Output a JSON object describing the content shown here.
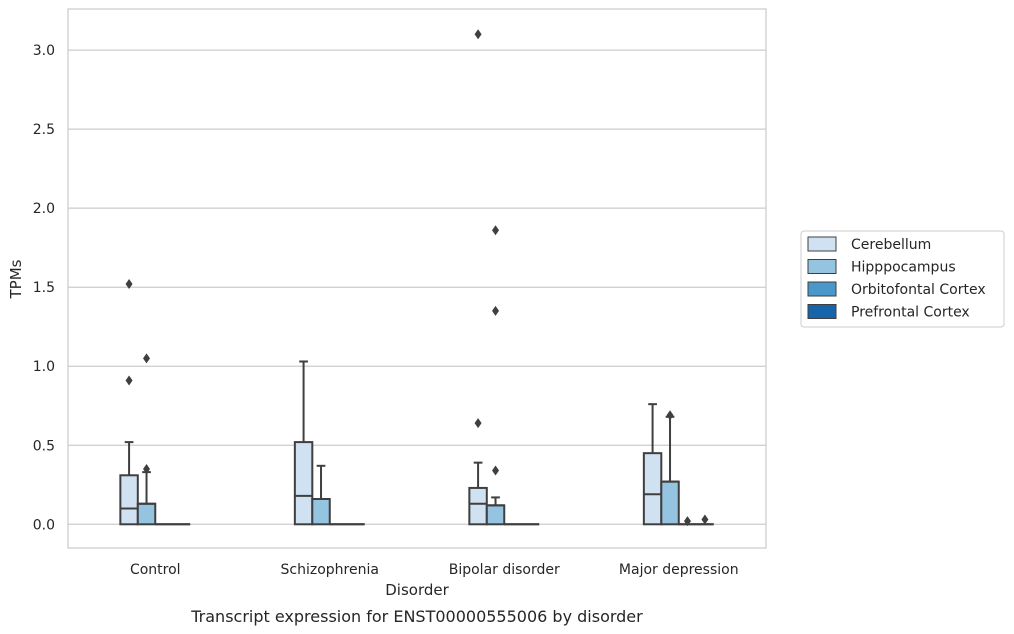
{
  "chart_data": {
    "type": "box",
    "title": "",
    "caption": "Transcript expression for ENST00000555006 by disorder",
    "xlabel": "Disorder",
    "ylabel": "TPMs",
    "ylim": [
      -0.15,
      3.26
    ],
    "yticks": [
      0.0,
      0.5,
      1.0,
      1.5,
      2.0,
      2.5,
      3.0
    ],
    "ytick_labels": [
      "0.0",
      "0.5",
      "1.0",
      "1.5",
      "2.0",
      "2.5",
      "3.0"
    ],
    "categories": [
      "Control",
      "Schizophrenia",
      "Bipolar disorder",
      "Major depression"
    ],
    "grid": "horizontal",
    "legend_position": "right",
    "series": [
      {
        "name": "Cerebellum",
        "color": "#d0e1f2",
        "boxes": [
          {
            "q1": 0.0,
            "median": 0.1,
            "q3": 0.31,
            "whisker_low": 0.0,
            "whisker_high": 0.52,
            "outliers": [
              0.91,
              1.52
            ]
          },
          {
            "q1": 0.0,
            "median": 0.18,
            "q3": 0.52,
            "whisker_low": 0.0,
            "whisker_high": 1.03,
            "outliers": []
          },
          {
            "q1": 0.0,
            "median": 0.13,
            "q3": 0.23,
            "whisker_low": 0.0,
            "whisker_high": 0.39,
            "outliers": [
              0.64,
              3.1
            ]
          },
          {
            "q1": 0.0,
            "median": 0.19,
            "q3": 0.45,
            "whisker_low": 0.0,
            "whisker_high": 0.76,
            "outliers": []
          }
        ]
      },
      {
        "name": "Hipppocampus",
        "color": "#94c4df",
        "boxes": [
          {
            "q1": 0.0,
            "median": 0.13,
            "q3": 0.13,
            "whisker_low": 0.0,
            "whisker_high": 0.33,
            "outliers": [
              0.35,
              1.05
            ]
          },
          {
            "q1": 0.0,
            "median": 0.16,
            "q3": 0.16,
            "whisker_low": 0.0,
            "whisker_high": 0.37,
            "outliers": []
          },
          {
            "q1": 0.0,
            "median": 0.12,
            "q3": 0.12,
            "whisker_low": 0.0,
            "whisker_high": 0.17,
            "outliers": [
              0.34,
              1.35,
              1.86
            ]
          },
          {
            "q1": 0.0,
            "median": 0.27,
            "q3": 0.27,
            "whisker_low": 0.0,
            "whisker_high": 0.68,
            "outliers": [
              0.69
            ]
          }
        ]
      },
      {
        "name": "Orbitofontal Cortex",
        "color": "#4a98c9",
        "boxes": [
          {
            "q1": 0.0,
            "median": 0.0,
            "q3": 0.0,
            "whisker_low": 0.0,
            "whisker_high": 0.0,
            "outliers": []
          },
          {
            "q1": 0.0,
            "median": 0.0,
            "q3": 0.0,
            "whisker_low": 0.0,
            "whisker_high": 0.0,
            "outliers": []
          },
          {
            "q1": 0.0,
            "median": 0.0,
            "q3": 0.0,
            "whisker_low": 0.0,
            "whisker_high": 0.0,
            "outliers": []
          },
          {
            "q1": 0.0,
            "median": 0.0,
            "q3": 0.0,
            "whisker_low": 0.0,
            "whisker_high": 0.0,
            "outliers": [
              0.02
            ]
          }
        ]
      },
      {
        "name": "Prefrontal Cortex",
        "color": "#1764ab",
        "boxes": [
          {
            "q1": 0.0,
            "median": 0.0,
            "q3": 0.0,
            "whisker_low": 0.0,
            "whisker_high": 0.0,
            "outliers": []
          },
          {
            "q1": 0.0,
            "median": 0.0,
            "q3": 0.0,
            "whisker_low": 0.0,
            "whisker_high": 0.0,
            "outliers": []
          },
          {
            "q1": 0.0,
            "median": 0.0,
            "q3": 0.0,
            "whisker_low": 0.0,
            "whisker_high": 0.0,
            "outliers": []
          },
          {
            "q1": 0.0,
            "median": 0.0,
            "q3": 0.0,
            "whisker_low": 0.0,
            "whisker_high": 0.0,
            "outliers": [
              0.03
            ]
          }
        ]
      }
    ]
  }
}
